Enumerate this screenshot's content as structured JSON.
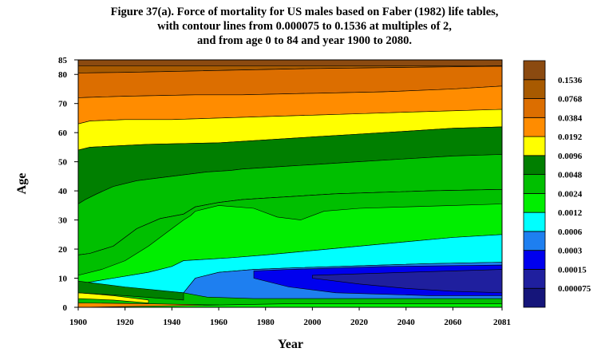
{
  "title_lines": [
    "Figure 37(a). Force of mortality for US males based on Faber (1982) life tables,",
    "with contour lines from 0.000075 to 0.1536 at multiples of 2,",
    "and from age 0 to 84 and year 1900 to 2080."
  ],
  "chart_data": {
    "type": "heatmap",
    "title": "Figure 37(a). Force of mortality for US males based on Faber (1982) life tables, with contour lines from 0.000075 to 0.1536 at multiples of 2, and from age 0 to 84 and year 1900 to 2080.",
    "xlabel": "Year",
    "ylabel": "Age",
    "xlim": [
      1900,
      2081
    ],
    "ylim": [
      0,
      85
    ],
    "x_ticks": [
      "1900",
      "1920",
      "1940",
      "1960",
      "1980",
      "2000",
      "2020",
      "2040",
      "2060",
      "2081"
    ],
    "x_tick_values": [
      1900,
      1920,
      1940,
      1960,
      1980,
      2000,
      2020,
      2040,
      2060,
      2081
    ],
    "y_ticks": [
      "0",
      "10",
      "20",
      "30",
      "40",
      "50",
      "60",
      "70",
      "80",
      "85"
    ],
    "y_tick_values": [
      0,
      10,
      20,
      30,
      40,
      50,
      60,
      70,
      80,
      85
    ],
    "levels": [
      "0.000075",
      "0.00015",
      "0.0003",
      "0.0006",
      "0.0012",
      "0.0024",
      "0.0048",
      "0.0096",
      "0.0192",
      "0.0384",
      "0.0768",
      "0.1536"
    ],
    "colors": [
      "#1f1f9e",
      "#0000ee",
      "#1e7ff0",
      "#00ffff",
      "#00ee00",
      "#00bf00",
      "#007f00",
      "#ffff00",
      "#ff8c00",
      "#dc6e00",
      "#a85a00",
      "#8b4a10"
    ],
    "legend_position": "right",
    "contours": [
      {
        "level": "0.1536",
        "x": [
          1900,
          2081
        ],
        "age": [
          [
            83,
            83
          ]
        ]
      },
      {
        "level": "0.0768",
        "x": [
          1900,
          1920,
          1950,
          2000,
          2050,
          2081
        ],
        "age": [
          [
            80.5,
            80.7,
            81.2,
            82,
            82.5,
            82.8
          ]
        ]
      },
      {
        "level": "0.0384",
        "x": [
          1900,
          1920,
          1950,
          1970,
          2000,
          2030,
          2060,
          2081
        ],
        "age": [
          [
            72,
            72.5,
            73,
            73,
            73.5,
            74,
            75,
            76
          ]
        ]
      },
      {
        "level": "0.0192",
        "x": [
          1900,
          1905,
          1920,
          1940,
          1960,
          1980,
          2000,
          2020,
          2040,
          2060,
          2081
        ],
        "age": [
          [
            63,
            64,
            64.5,
            64.5,
            65,
            65.5,
            66,
            66.5,
            67,
            67.5,
            68
          ]
        ]
      },
      {
        "level": "0.0096",
        "x": [
          1900,
          1905,
          1930,
          1960,
          1980,
          2000,
          2020,
          2040,
          2060,
          2081
        ],
        "age": [
          [
            54,
            55,
            56,
            56.5,
            57.5,
            58.5,
            59.5,
            60.5,
            61.5,
            62
          ]
        ]
      }
    ]
  }
}
